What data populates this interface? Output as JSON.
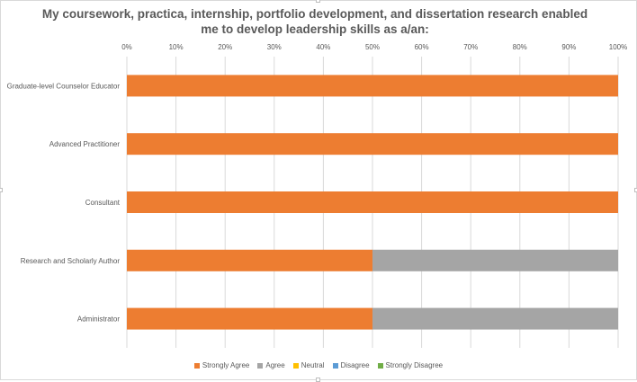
{
  "chart_data": {
    "type": "bar",
    "orientation": "horizontal",
    "stacked": true,
    "title": "My coursework, practica, internship, portfolio development, and dissertation research enabled me to develop leadership skills as a/an:",
    "categories": [
      "Graduate-level Counselor Educator",
      "Advanced Practitioner",
      "Consultant",
      "Research and Scholarly Author",
      "Administrator"
    ],
    "series": [
      {
        "name": "Strongly Agree",
        "color": "#ed7d31",
        "values": [
          100,
          100,
          100,
          50,
          50
        ]
      },
      {
        "name": "Agree",
        "color": "#a5a5a5",
        "values": [
          0,
          0,
          0,
          50,
          50
        ]
      },
      {
        "name": "Neutral",
        "color": "#ffc000",
        "values": [
          0,
          0,
          0,
          0,
          0
        ]
      },
      {
        "name": "Disagree",
        "color": "#5b9bd5",
        "values": [
          0,
          0,
          0,
          0,
          0
        ]
      },
      {
        "name": "Strongly Disagree",
        "color": "#70ad47",
        "values": [
          0,
          0,
          0,
          0,
          0
        ]
      }
    ],
    "x_ticks": [
      "0%",
      "10%",
      "20%",
      "30%",
      "40%",
      "50%",
      "60%",
      "70%",
      "80%",
      "90%",
      "100%"
    ],
    "xlim": [
      0,
      100
    ],
    "xaxis_position": "top",
    "grid": true,
    "legend_position": "bottom"
  }
}
